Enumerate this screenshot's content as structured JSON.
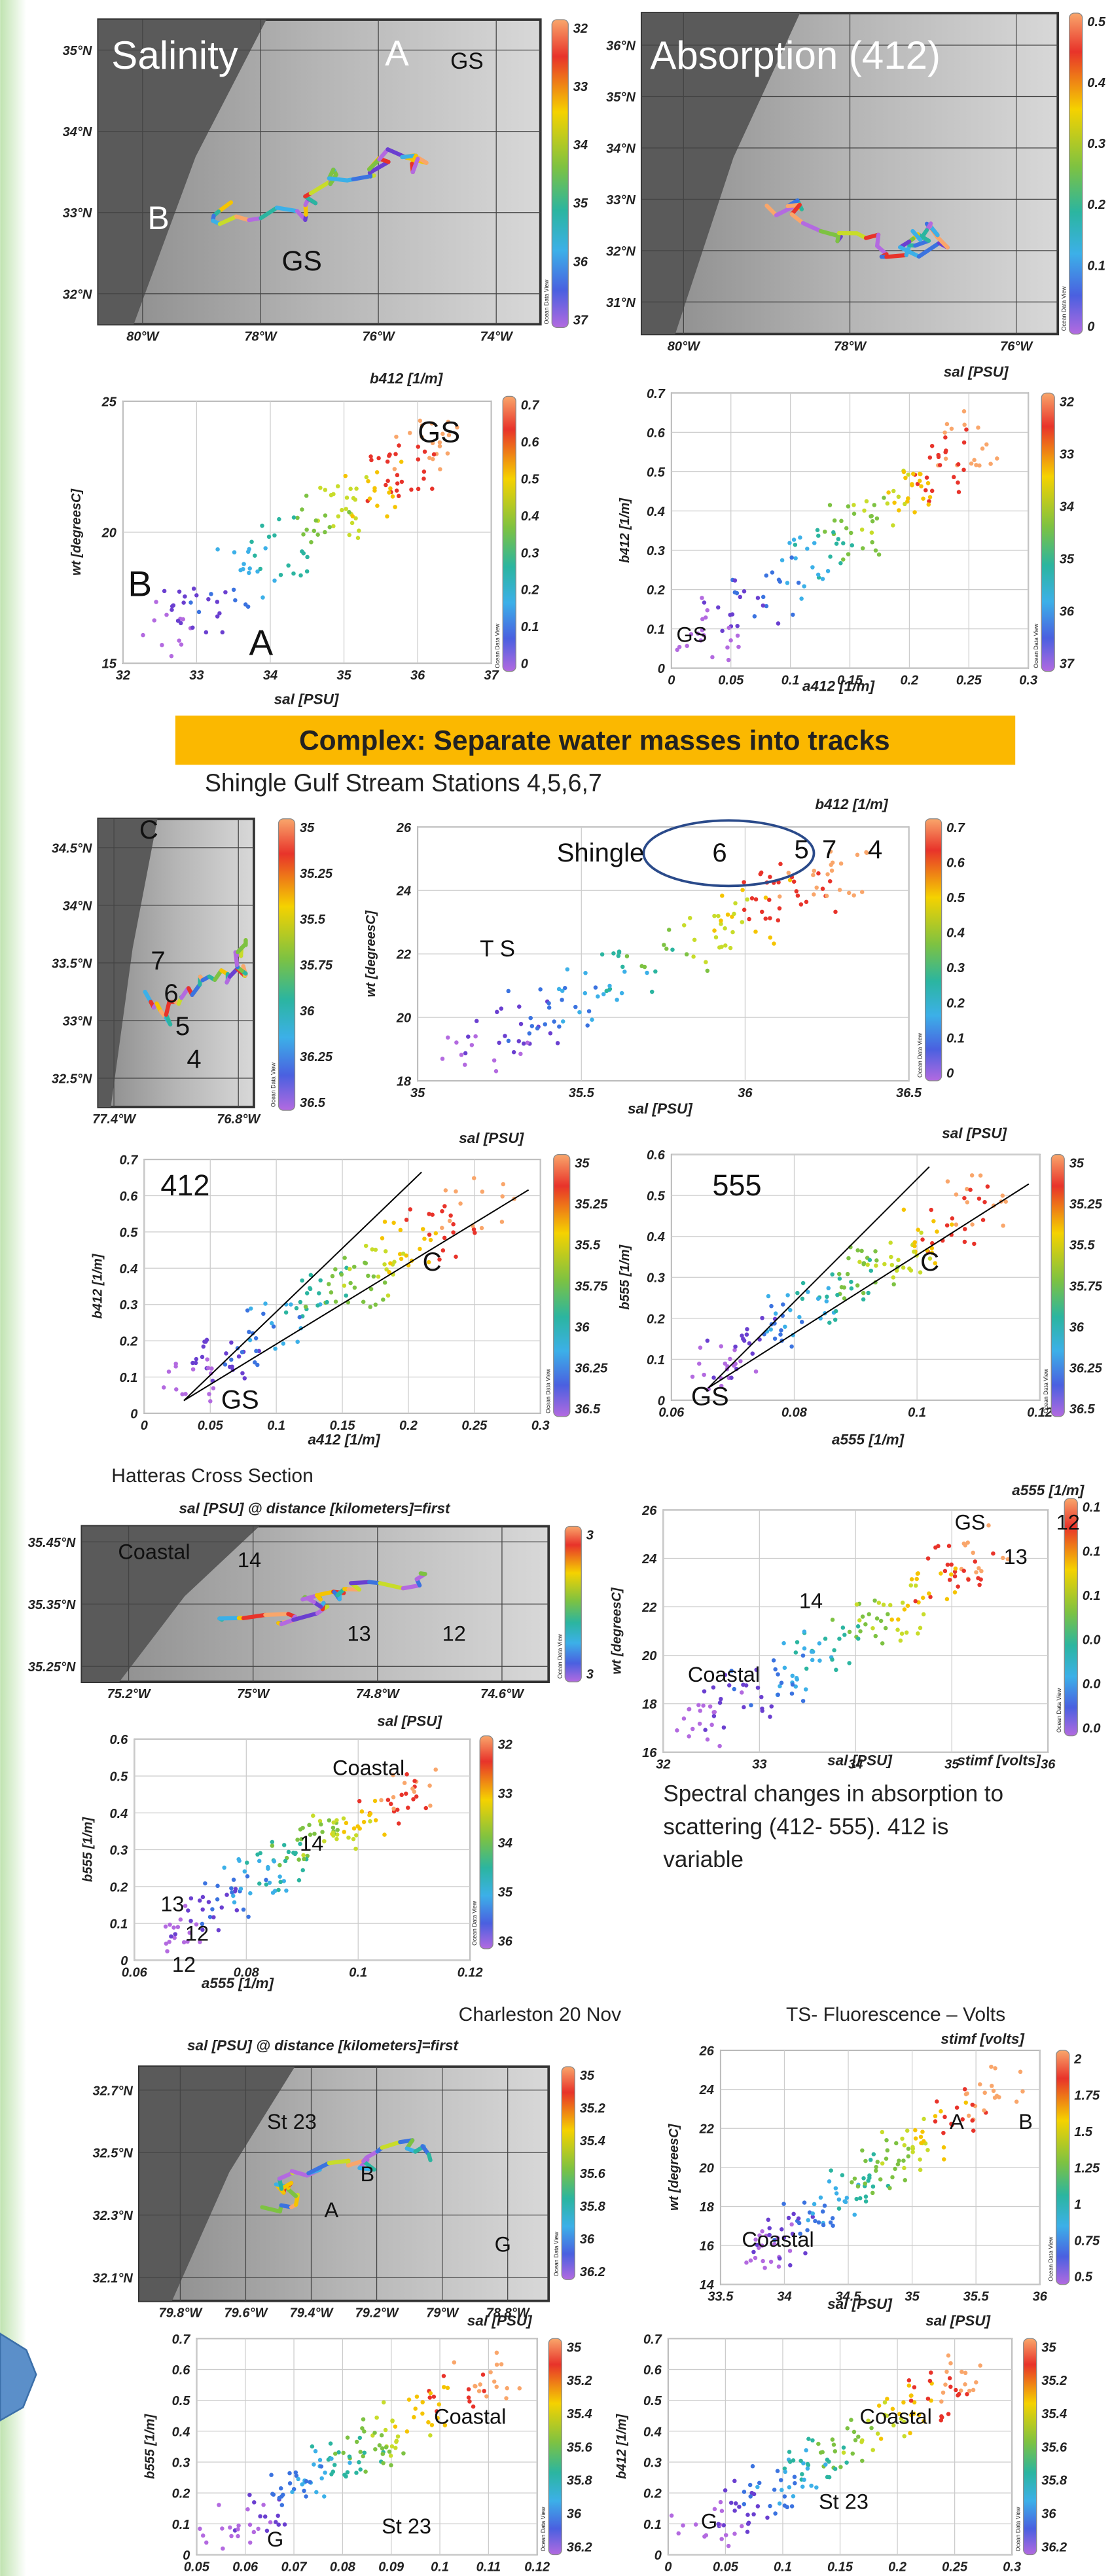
{
  "odv": "Ocean Data View",
  "banner": "Complex: Separate  water masses into tracks",
  "shingle": "Shingle  Gulf Stream Stations   4,5,6,7",
  "hatteras": "Hatteras Cross Section",
  "spectral": [
    "Spectral changes in absorption  to",
    "scattering  (412- 555). 412 is",
    "variable"
  ],
  "charleston": "Charleston  20 Nov",
  "tsfluor": "TS- Fluorescence  – Volts",
  "panels": [
    {
      "xticks": [
        "80°W",
        "78°W",
        "76°W",
        "74°W"
      ],
      "yticks": [
        "32°N",
        "33°N",
        "34°N",
        "35°N"
      ],
      "cbar": [
        "32",
        "33",
        "34",
        "35",
        "36",
        "37"
      ],
      "labels": [
        "Salinity",
        "A",
        "GS",
        "B",
        "GS"
      ]
    },
    {
      "xticks": [
        "80°W",
        "78°W",
        "76°W"
      ],
      "yticks": [
        "31°N",
        "32°N",
        "33°N",
        "34°N",
        "35°N",
        "36°N"
      ],
      "cbar": [
        "0.5",
        "0.4",
        "0.3",
        "0.2",
        "0.1",
        "0"
      ],
      "labels": [
        "Absorption (412)"
      ]
    },
    {
      "title": "b412 [1/m]",
      "ylabel": "wt [degreesC]",
      "xlabels": [
        "sal [PSU]"
      ],
      "xticks": [
        "32",
        "33",
        "34",
        "35",
        "36",
        "37"
      ],
      "yticks": [
        "15",
        "20",
        "25"
      ],
      "cbar": [
        "0.7",
        "0.6",
        "0.5",
        "0.4",
        "0.3",
        "0.2",
        "0.1",
        "0"
      ],
      "labels": [
        "GS",
        "B",
        "A"
      ]
    },
    {
      "title": "sal [PSU]",
      "ylabel": "b412 [1/m]",
      "xlabels": [
        "a412 [1/m]"
      ],
      "xticks": [
        "0",
        "0.05",
        "0.1",
        "0.15",
        "0.2",
        "0.25",
        "0.3"
      ],
      "yticks": [
        "0",
        "0.1",
        "0.2",
        "0.3",
        "0.4",
        "0.5",
        "0.6",
        "0.7"
      ],
      "cbar": [
        "32",
        "33",
        "34",
        "35",
        "36",
        "37"
      ],
      "labels": [
        "GS"
      ]
    },
    {
      "xticks": [
        "77.4°W",
        "76.8°W"
      ],
      "yticks": [
        "32.5°N",
        "33°N",
        "33.5°N",
        "34°N",
        "34.5°N"
      ],
      "cbar": [
        "35",
        "35.25",
        "35.5",
        "35.75",
        "36",
        "36.25",
        "36.5"
      ],
      "labels": [
        "C",
        "7",
        "6",
        "5",
        "4"
      ]
    },
    {
      "title": "b412 [1/m]",
      "ylabel": "wt [degreesC]",
      "xlabels": [
        "sal [PSU]"
      ],
      "xticks": [
        "35",
        "35.5",
        "36",
        "36.5"
      ],
      "yticks": [
        "18",
        "20",
        "22",
        "24",
        "26"
      ],
      "cbar": [
        "0.7",
        "0.6",
        "0.5",
        "0.4",
        "0.3",
        "0.2",
        "0.1",
        "0"
      ],
      "labels": [
        "Shingle",
        "6",
        "5",
        "7",
        "4",
        "T S"
      ]
    },
    {
      "title": "sal [PSU]",
      "ylabel": "b412 [1/m]",
      "xlabels": [
        "a412 [1/m]"
      ],
      "xticks": [
        "0",
        "0.05",
        "0.1",
        "0.15",
        "0.2",
        "0.25",
        "0.3"
      ],
      "yticks": [
        "0",
        "0.1",
        "0.2",
        "0.3",
        "0.4",
        "0.5",
        "0.6",
        "0.7"
      ],
      "cbar": [
        "35",
        "35.25",
        "35.5",
        "35.75",
        "36",
        "36.25",
        "36.5"
      ],
      "labels": [
        "412",
        "C",
        "GS"
      ]
    },
    {
      "title": "sal [PSU]",
      "ylabel": "b555 [1/m]",
      "xlabels": [
        "a555 [1/m]"
      ],
      "xticks": [
        "0.06",
        "0.08",
        "0.1",
        "0.12"
      ],
      "yticks": [
        "0",
        "0.1",
        "0.2",
        "0.3",
        "0.4",
        "0.5",
        "0.6"
      ],
      "cbar": [
        "35",
        "35.25",
        "35.5",
        "35.75",
        "36",
        "36.25",
        "36.5"
      ],
      "labels": [
        "555",
        "C",
        "GS"
      ]
    },
    {
      "title": "sal [PSU] @ distance [kilometers]=first",
      "xticks": [
        "75.2°W",
        "75°W",
        "74.8°W",
        "74.6°W"
      ],
      "yticks": [
        "35.25°N",
        "35.35°N",
        "35.45°N"
      ],
      "cbar": [
        "3",
        "3"
      ],
      "labels": [
        "Coastal",
        "14",
        "13",
        "12"
      ]
    },
    {
      "title": "a555 [1/m]",
      "ylabel": "wt [degreesC]",
      "xlabels": [
        "sal [PSU]",
        "stimf [volts]"
      ],
      "xticks": [
        "32",
        "33",
        "34",
        "35",
        "36"
      ],
      "yticks": [
        "16",
        "18",
        "20",
        "22",
        "24",
        "26"
      ],
      "cbar": [
        "0.1",
        "0.1",
        "0.1",
        "0.0",
        "0.0",
        "0.0"
      ],
      "labels": [
        "GS",
        "12",
        "13",
        "14",
        "Coastal"
      ]
    },
    {
      "title": "sal [PSU]",
      "ylabel": "b555 [1/m]",
      "xlabels": [
        "a555 [1/m]"
      ],
      "xticks": [
        "0.06",
        "0.08",
        "0.1",
        "0.12"
      ],
      "yticks": [
        "0",
        "0.1",
        "0.2",
        "0.3",
        "0.4",
        "0.5",
        "0.6"
      ],
      "cbar": [
        "32",
        "33",
        "34",
        "35",
        "36"
      ],
      "labels": [
        "Coastal",
        "14",
        "13",
        "12",
        "12"
      ]
    },
    {
      "title": "sal [PSU] @ distance [kilometers]=first",
      "xticks": [
        "79.8°W",
        "79.6°W",
        "79.4°W",
        "79.2°W",
        "79°W",
        "78.8°W"
      ],
      "yticks": [
        "32.1°N",
        "32.3°N",
        "32.5°N",
        "32.7°N"
      ],
      "cbar": [
        "35",
        "35.2",
        "35.4",
        "35.6",
        "35.8",
        "36",
        "36.2"
      ],
      "labels": [
        "St 23",
        "B",
        "A",
        "G"
      ]
    },
    {
      "title": "stimf [volts]",
      "ylabel": "wt [degreesC]",
      "xlabels": [
        "sal [PSU]"
      ],
      "xticks": [
        "33.5",
        "34",
        "34.5",
        "35",
        "35.5",
        "36"
      ],
      "yticks": [
        "14",
        "16",
        "18",
        "20",
        "22",
        "24",
        "26"
      ],
      "cbar": [
        "2",
        "1.75",
        "1.5",
        "1.25",
        "1",
        "0.75",
        "0.5"
      ],
      "labels": [
        "A",
        "B",
        "Coastal"
      ]
    },
    {
      "title": "sal [PSU]",
      "ylabel": "b555 [1/m]",
      "xticks": [
        "0.05",
        "0.06",
        "0.07",
        "0.08",
        "0.09",
        "0.1",
        "0.11",
        "0.12"
      ],
      "yticks": [
        "0",
        "0.1",
        "0.2",
        "0.3",
        "0.4",
        "0.5",
        "0.6",
        "0.7"
      ],
      "cbar": [
        "35",
        "35.2",
        "35.4",
        "35.6",
        "35.8",
        "36",
        "36.2"
      ],
      "labels": [
        "Coastal",
        "G",
        "St 23"
      ]
    },
    {
      "title": "sal [PSU]",
      "ylabel": "b412 [1/m]",
      "xticks": [
        "0",
        "0.05",
        "0.1",
        "0.15",
        "0.2",
        "0.25",
        "0.3"
      ],
      "yticks": [
        "0",
        "0.1",
        "0.2",
        "0.3",
        "0.4",
        "0.5",
        "0.6",
        "0.7"
      ],
      "cbar": [
        "35",
        "35.2",
        "35.4",
        "35.6",
        "35.8",
        "36",
        "36.2"
      ],
      "labels": [
        "Coastal",
        "G",
        "St 23"
      ]
    }
  ]
}
